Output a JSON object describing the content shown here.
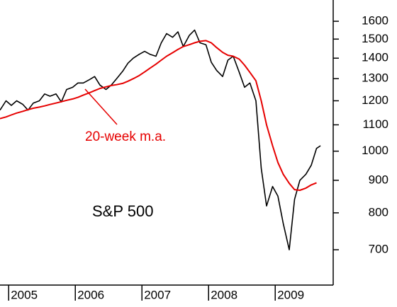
{
  "chart_data": {
    "type": "line",
    "title": "S&P 500",
    "annotation": "20-week m.a.",
    "log_scale": true,
    "xlim": [
      2004.87,
      2009.87
    ],
    "xticks": [
      2005,
      2006,
      2007,
      2008,
      2009
    ],
    "ylim": [
      616,
      1728
    ],
    "yticks": [
      700,
      800,
      900,
      1000,
      1100,
      1200,
      1300,
      1400,
      1500,
      1600
    ],
    "x": [
      2004.87,
      2004.96,
      2005.04,
      2005.12,
      2005.21,
      2005.29,
      2005.37,
      2005.46,
      2005.54,
      2005.62,
      2005.71,
      2005.79,
      2005.87,
      2005.96,
      2006.04,
      2006.12,
      2006.21,
      2006.29,
      2006.37,
      2006.46,
      2006.54,
      2006.62,
      2006.71,
      2006.79,
      2006.87,
      2006.96,
      2007.04,
      2007.12,
      2007.21,
      2007.29,
      2007.37,
      2007.46,
      2007.54,
      2007.62,
      2007.71,
      2007.79,
      2007.87,
      2007.96,
      2008.04,
      2008.12,
      2008.21,
      2008.29,
      2008.37,
      2008.46,
      2008.54,
      2008.62,
      2008.71,
      2008.79,
      2008.87,
      2008.96,
      2009.04,
      2009.12,
      2009.21,
      2009.29,
      2009.37,
      2009.46,
      2009.54,
      2009.62,
      2009.68
    ],
    "series": [
      {
        "color": "#000000",
        "values": [
          1160,
          1200,
          1180,
          1200,
          1185,
          1160,
          1190,
          1200,
          1230,
          1220,
          1230,
          1195,
          1250,
          1260,
          1280,
          1280,
          1295,
          1310,
          1270,
          1250,
          1270,
          1300,
          1335,
          1375,
          1400,
          1420,
          1435,
          1420,
          1410,
          1480,
          1530,
          1510,
          1540,
          1460,
          1520,
          1550,
          1480,
          1470,
          1380,
          1340,
          1310,
          1390,
          1410,
          1330,
          1260,
          1280,
          1200,
          940,
          820,
          880,
          850,
          770,
          700,
          840,
          900,
          920,
          950,
          1010,
          1020
        ]
      },
      {
        "color": "#e60000",
        "values": [
          1125,
          1132,
          1140,
          1148,
          1155,
          1162,
          1168,
          1173,
          1178,
          1184,
          1190,
          1196,
          1202,
          1208,
          1215,
          1225,
          1235,
          1245,
          1255,
          1262,
          1268,
          1272,
          1278,
          1288,
          1300,
          1315,
          1332,
          1350,
          1370,
          1390,
          1410,
          1428,
          1445,
          1460,
          1470,
          1480,
          1488,
          1492,
          1480,
          1455,
          1430,
          1415,
          1410,
          1395,
          1365,
          1330,
          1290,
          1200,
          1100,
          1020,
          960,
          920,
          890,
          870,
          868,
          875,
          885,
          892,
          null
        ]
      }
    ]
  }
}
